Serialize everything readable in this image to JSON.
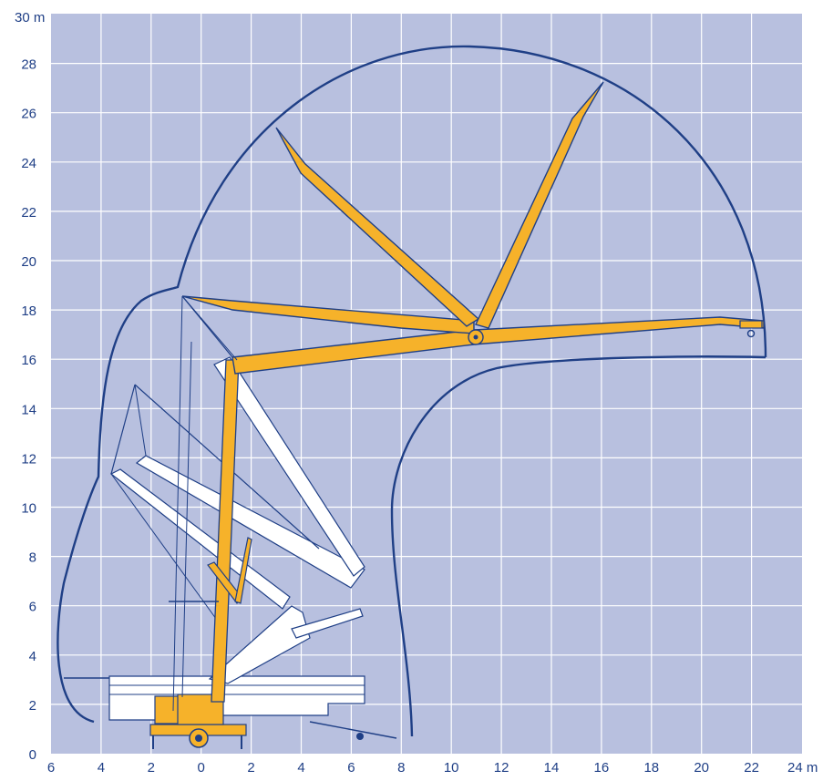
{
  "diagram": {
    "y_unit_label": "30 m",
    "x_unit_label": "24 m",
    "y_ticks": [
      "0",
      "2",
      "4",
      "6",
      "8",
      "10",
      "12",
      "14",
      "16",
      "18",
      "20",
      "22",
      "24",
      "26",
      "28"
    ],
    "x_ticks": [
      "6",
      "4",
      "2",
      "0",
      "2",
      "4",
      "6",
      "8",
      "10",
      "12",
      "14",
      "16",
      "18",
      "20",
      "22"
    ],
    "colors": {
      "grid_background": "#b8c0df",
      "grid_lines": "#ffffff",
      "outline": "#1f3f86",
      "boom_yellow": "#f6b22a",
      "stowed_white": "#ffffff",
      "label_text": "#1f3f86"
    }
  }
}
